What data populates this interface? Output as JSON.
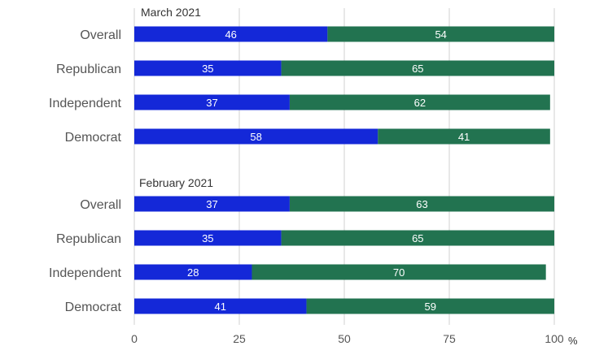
{
  "chart_data": {
    "type": "bar",
    "orientation": "horizontal",
    "stacked": true,
    "groups": [
      {
        "title": "March 2021",
        "categories": [
          "Overall",
          "Republican",
          "Independent",
          "Democrat"
        ],
        "series": [
          {
            "values": [
              46,
              35,
              37,
              58
            ],
            "color": "#1428d8"
          },
          {
            "values": [
              54,
              65,
              62,
              41
            ],
            "color": "#227350"
          }
        ]
      },
      {
        "title": "February 2021",
        "categories": [
          "Overall",
          "Republican",
          "Independent",
          "Democrat"
        ],
        "series": [
          {
            "values": [
              37,
              35,
              28,
              41
            ],
            "color": "#1428d8"
          },
          {
            "values": [
              63,
              65,
              70,
              59
            ],
            "color": "#227350"
          }
        ]
      }
    ],
    "x_ticks": [
      0,
      25,
      50,
      75,
      100
    ],
    "x_unit": "%",
    "xlim": [
      0,
      100
    ],
    "grid": true,
    "legend": false,
    "data_labels": true
  }
}
